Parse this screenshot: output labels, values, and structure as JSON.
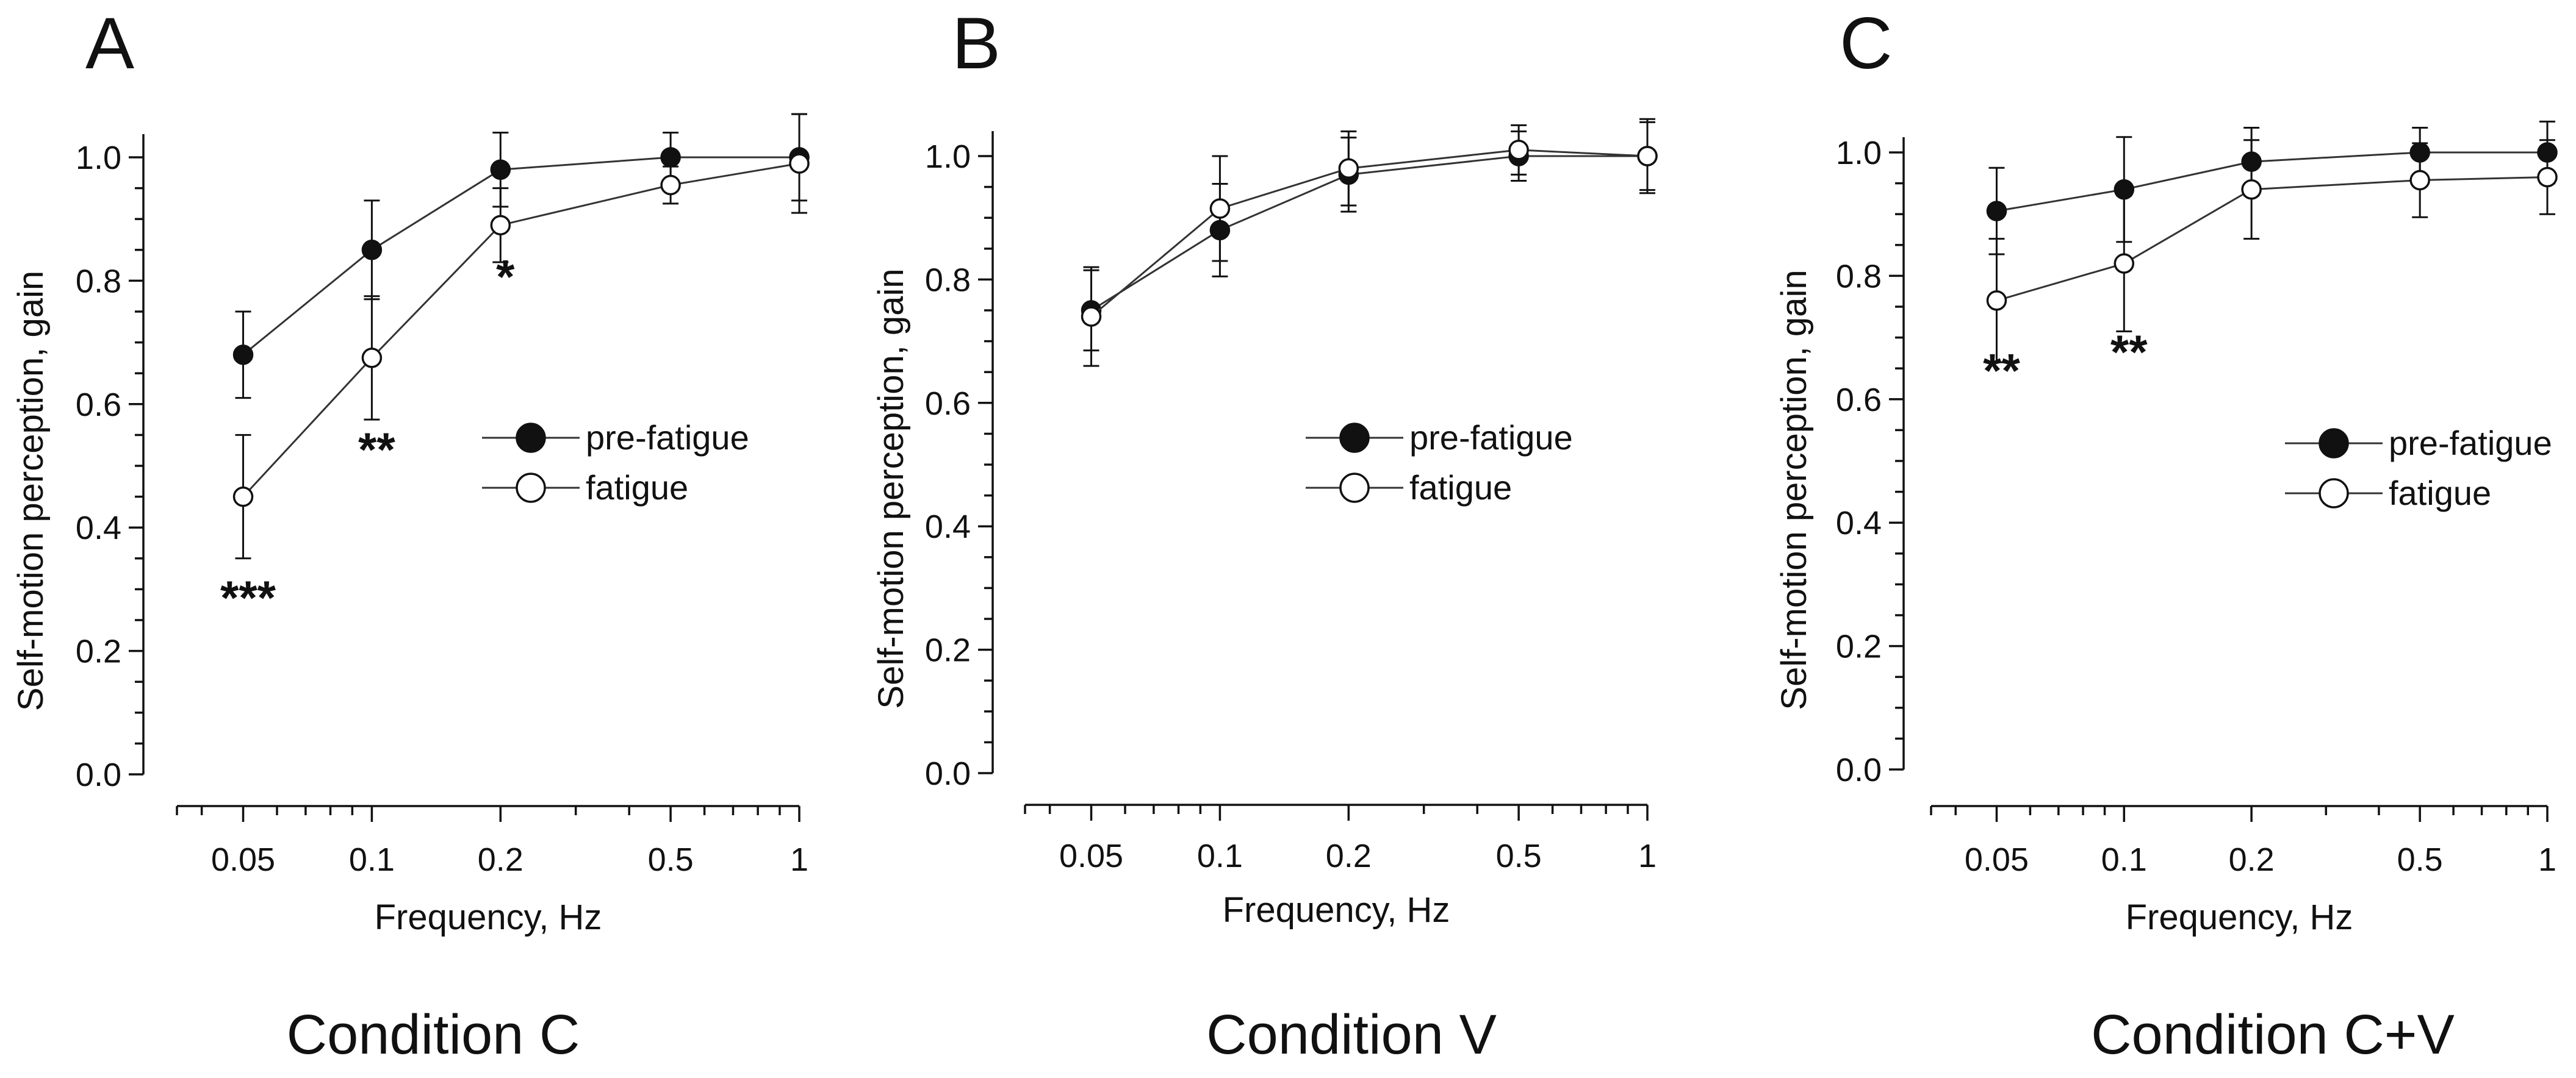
{
  "chart_data": [
    {
      "type": "line",
      "panel_letter": "A",
      "title": "Condition C",
      "xlabel": "Frequency, Hz",
      "ylabel": "Self-motion perception, gain",
      "x_scale": "log",
      "xlim": [
        0.035,
        1.0
      ],
      "ylim": [
        0.0,
        1.0
      ],
      "x_ticks": [
        0.05,
        0.1,
        0.2,
        0.5,
        1
      ],
      "x_tick_labels": [
        "0.05",
        "0.1",
        "0.2",
        "0.5",
        "1"
      ],
      "y_ticks": [
        0.0,
        0.2,
        0.4,
        0.6,
        0.8,
        1.0
      ],
      "y_tick_labels": [
        "0.0",
        "0.2",
        "0.4",
        "0.6",
        "0.8",
        "1.0"
      ],
      "x": [
        0.05,
        0.1,
        0.2,
        0.5,
        1
      ],
      "series": [
        {
          "name": "pre-fatigue",
          "marker": "filled",
          "values": [
            0.68,
            0.85,
            0.98,
            1.0,
            1.0
          ],
          "errors": [
            0.07,
            0.08,
            0.06,
            0.04,
            0.07
          ]
        },
        {
          "name": "fatigue",
          "marker": "open",
          "values": [
            0.45,
            0.675,
            0.89,
            0.955,
            0.99
          ],
          "errors": [
            0.1,
            0.1,
            0.06,
            0.03,
            0.08
          ]
        }
      ],
      "legend": {
        "position": "middle-right",
        "entries": [
          "pre-fatigue",
          "fatigue"
        ]
      },
      "significance": [
        {
          "text": "***",
          "x": 0.05,
          "y": 0.26
        },
        {
          "text": "**",
          "x": 0.1,
          "y": 0.5
        },
        {
          "text": "*",
          "x": 0.2,
          "y": 0.78
        }
      ]
    },
    {
      "type": "line",
      "panel_letter": "B",
      "title": "Condition V",
      "xlabel": "Frequency, Hz",
      "ylabel": "Self-motion perception, gain",
      "x_scale": "log",
      "xlim": [
        0.035,
        1.0
      ],
      "ylim": [
        0.0,
        1.0
      ],
      "x_ticks": [
        0.05,
        0.1,
        0.2,
        0.5,
        1
      ],
      "x_tick_labels": [
        "0.05",
        "0.1",
        "0.2",
        "0.5",
        "1"
      ],
      "y_ticks": [
        0.0,
        0.2,
        0.4,
        0.6,
        0.8,
        1.0
      ],
      "y_tick_labels": [
        "0.0",
        "0.2",
        "0.4",
        "0.6",
        "0.8",
        "1.0"
      ],
      "x": [
        0.05,
        0.1,
        0.2,
        0.5,
        1
      ],
      "series": [
        {
          "name": "pre-fatigue",
          "marker": "filled",
          "values": [
            0.75,
            0.88,
            0.97,
            1.0,
            1.0
          ],
          "errors": [
            0.065,
            0.075,
            0.06,
            0.04,
            0.055
          ]
        },
        {
          "name": "fatigue",
          "marker": "open",
          "values": [
            0.74,
            0.915,
            0.98,
            1.01,
            1.0
          ],
          "errors": [
            0.08,
            0.085,
            0.06,
            0.04,
            0.06
          ]
        }
      ],
      "legend": {
        "position": "middle-right",
        "entries": [
          "pre-fatigue",
          "fatigue"
        ]
      },
      "significance": []
    },
    {
      "type": "line",
      "panel_letter": "C",
      "title": "Condition C+V",
      "xlabel": "Frequency, Hz",
      "ylabel": "Self-motion perception, gain",
      "x_scale": "log",
      "xlim": [
        0.035,
        1.0
      ],
      "ylim": [
        0.0,
        1.0
      ],
      "x_ticks": [
        0.05,
        0.1,
        0.2,
        0.5,
        1
      ],
      "x_tick_labels": [
        "0.05",
        "0.1",
        "0.2",
        "0.5",
        "1"
      ],
      "y_ticks": [
        0.0,
        0.2,
        0.4,
        0.6,
        0.8,
        1.0
      ],
      "y_tick_labels": [
        "0.0",
        "0.2",
        "0.4",
        "0.6",
        "0.8",
        "1.0"
      ],
      "x": [
        0.05,
        0.1,
        0.2,
        0.5,
        1
      ],
      "series": [
        {
          "name": "pre-fatigue",
          "marker": "filled",
          "values": [
            0.905,
            0.94,
            0.985,
            1.0,
            1.0
          ],
          "errors": [
            0.07,
            0.085,
            0.055,
            0.04,
            0.05
          ]
        },
        {
          "name": "fatigue",
          "marker": "open",
          "values": [
            0.76,
            0.82,
            0.94,
            0.955,
            0.96
          ],
          "errors": [
            0.1,
            0.11,
            0.08,
            0.06,
            0.06
          ]
        }
      ],
      "legend": {
        "position": "middle-right",
        "entries": [
          "pre-fatigue",
          "fatigue"
        ]
      },
      "significance": [
        {
          "text": "**",
          "x": 0.05,
          "y": 0.62
        },
        {
          "text": "**",
          "x": 0.1,
          "y": 0.65
        }
      ]
    }
  ]
}
